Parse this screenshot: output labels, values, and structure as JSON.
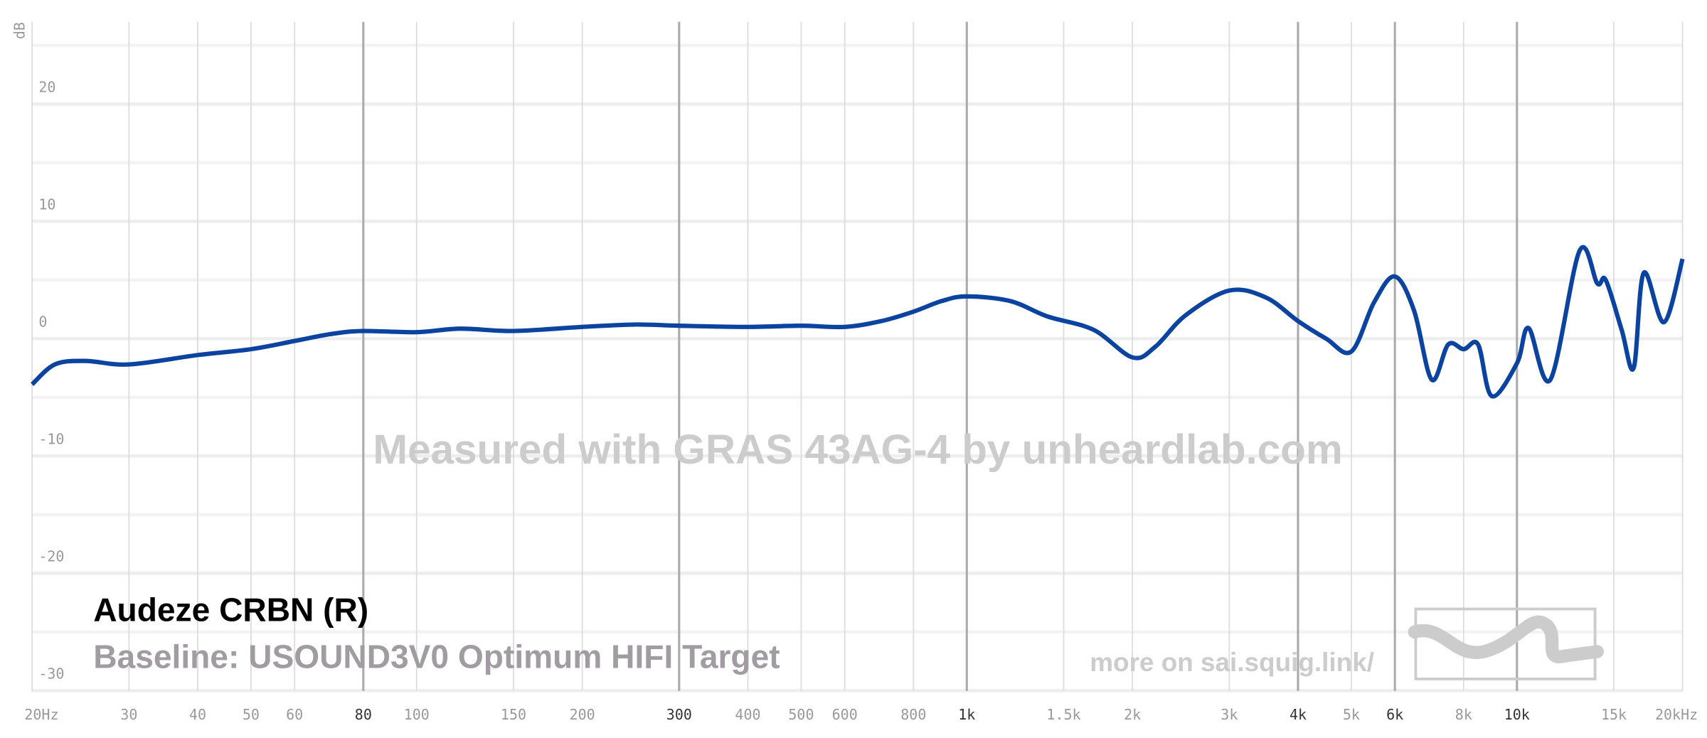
{
  "chart_data": {
    "type": "line",
    "y_unit": "dB",
    "watermark": "Measured with GRAS 43AG-4 by unheardlab.com",
    "baseline": "Baseline: USOUND3V0 Optimum HIFI Target",
    "footer": "more on sai.squig.link/",
    "x_log": true,
    "grid": true,
    "x": [
      20,
      22,
      25,
      30,
      40,
      50,
      60,
      70,
      80,
      100,
      120,
      150,
      200,
      250,
      300,
      400,
      500,
      600,
      700,
      800,
      900,
      1000,
      1200,
      1400,
      1700,
      2000,
      2200,
      2500,
      3000,
      3500,
      4000,
      4500,
      5000,
      5500,
      6000,
      6500,
      7000,
      7500,
      8000,
      8500,
      9000,
      10000,
      10500,
      11500,
      13000,
      14000,
      14500,
      15500,
      16300,
      17000,
      18500,
      20000
    ],
    "series": [
      {
        "name": "Audeze CRBN (R)",
        "color": "#0b44a0",
        "values": [
          -3.9,
          -2.2,
          -1.9,
          -2.2,
          -1.4,
          -0.9,
          -0.2,
          0.4,
          0.65,
          0.55,
          0.85,
          0.65,
          1.0,
          1.2,
          1.1,
          1.0,
          1.1,
          1.0,
          1.5,
          2.3,
          3.2,
          3.6,
          3.2,
          1.9,
          0.75,
          -1.6,
          -0.7,
          2.0,
          4.1,
          3.5,
          1.5,
          0,
          -1.1,
          3.1,
          5.3,
          2.4,
          -3.5,
          -0.5,
          -0.9,
          -0.5,
          -4.9,
          -2.1,
          0.9,
          -3.5,
          7.5,
          4.7,
          5.0,
          0.75,
          -2.5,
          5.6,
          1.4,
          6.8
        ]
      }
    ],
    "xlim": [
      20,
      20000
    ],
    "ylim": [
      -30.5,
      27
    ],
    "yticks": [
      -30,
      -20,
      -10,
      0,
      10,
      20
    ],
    "y_minor_ticks": [
      -25,
      -15,
      -5,
      5,
      15,
      25
    ],
    "xticks": [
      {
        "value": 20,
        "label": "20Hz"
      },
      30,
      40,
      50,
      60,
      80,
      100,
      150,
      200,
      300,
      400,
      500,
      600,
      800,
      {
        "value": 1000,
        "label": "1k"
      },
      {
        "value": 1500,
        "label": "1.5k"
      },
      {
        "value": 2000,
        "label": "2k"
      },
      {
        "value": 3000,
        "label": "3k"
      },
      {
        "value": 4000,
        "label": "4k"
      },
      {
        "value": 5000,
        "label": "5k"
      },
      {
        "value": 6000,
        "label": "6k"
      },
      {
        "value": 8000,
        "label": "8k"
      },
      {
        "value": 10000,
        "label": "10k"
      },
      {
        "value": 15000,
        "label": "15k"
      },
      {
        "value": 20000,
        "label": "20kHz"
      }
    ],
    "xticks_emphasized": [
      80,
      300,
      1000,
      4000,
      6000,
      10000
    ]
  }
}
